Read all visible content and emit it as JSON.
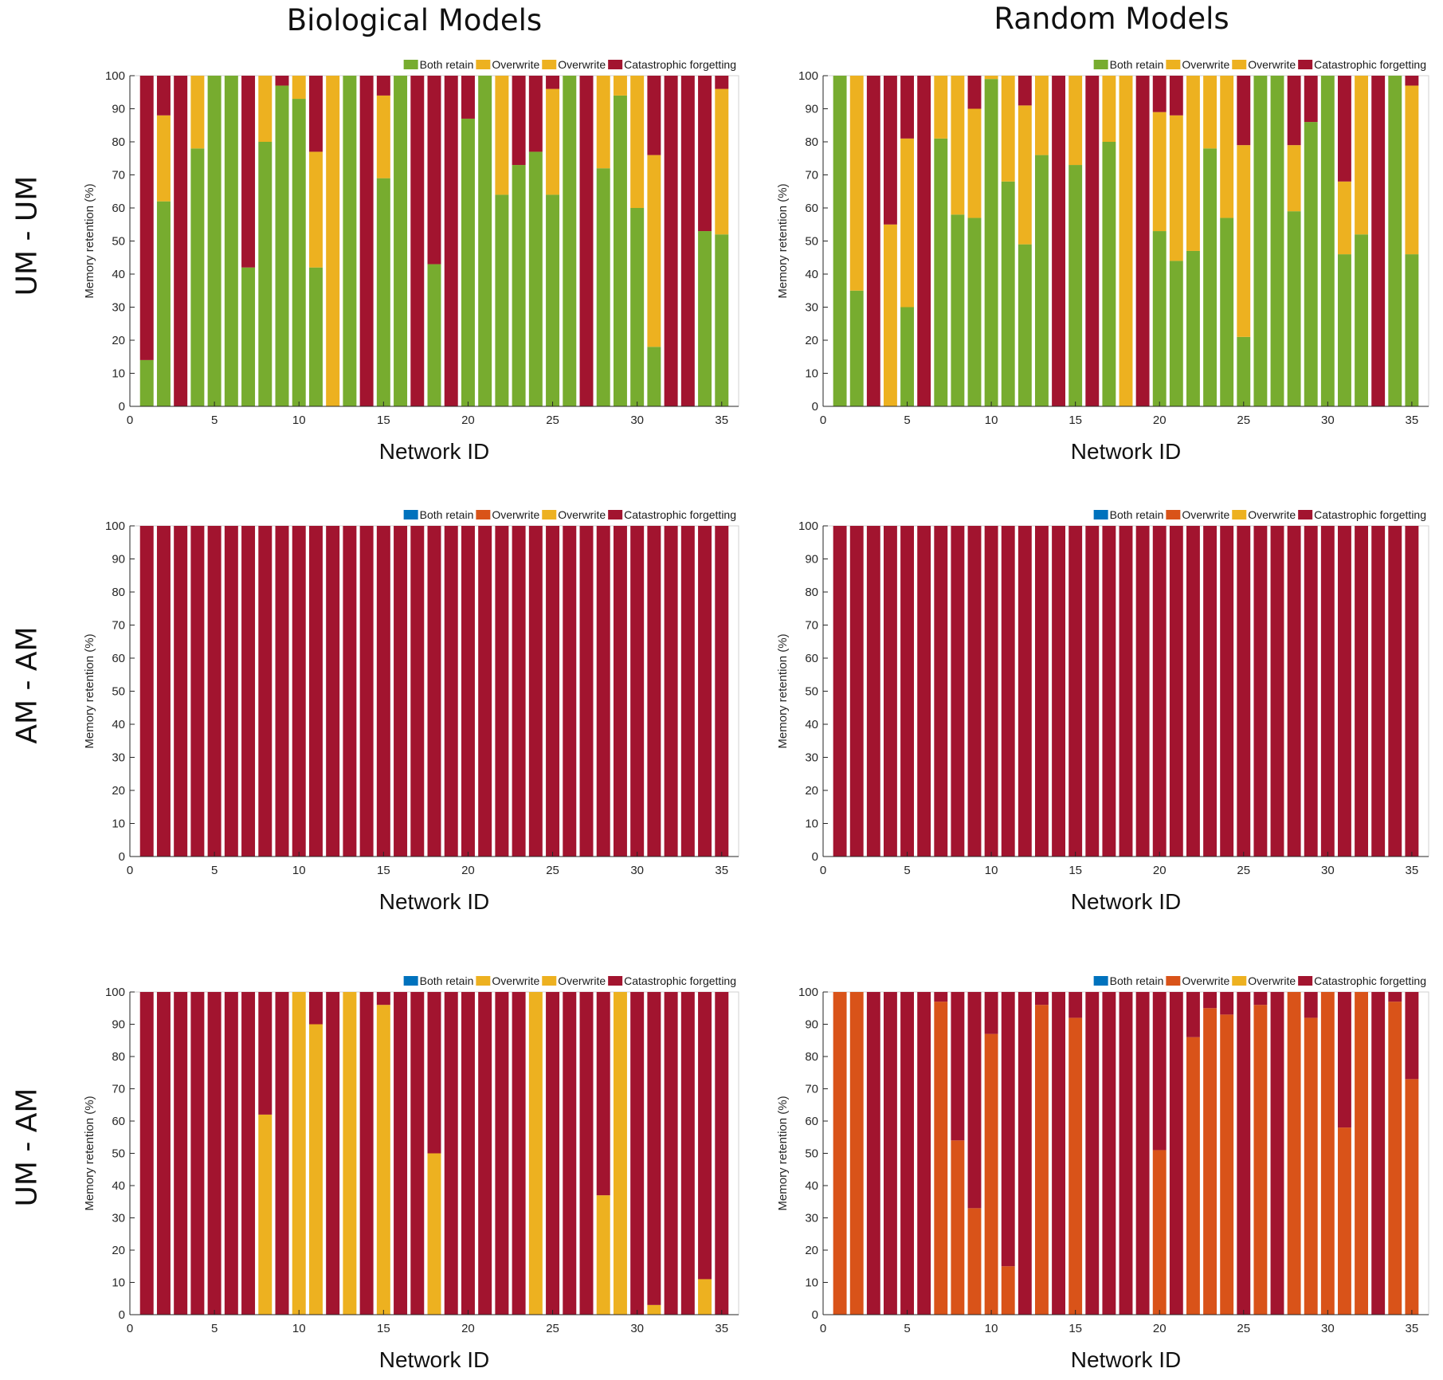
{
  "column_titles": [
    "Biological Models",
    "Random Models"
  ],
  "row_labels": [
    "UM - UM",
    "AM - AM",
    "UM - AM"
  ],
  "colors": {
    "both_retain_um": "#77ac2f",
    "overwrite_um": "#edb120",
    "both_retain_am": "#0072bd",
    "overwrite_am": "#d95319",
    "catastrophic": "#a2142f"
  },
  "chart_data": [
    {
      "type": "bar",
      "stacked": true,
      "panel": "biological-um-um",
      "xlabel": "Network ID",
      "ylabel": "Memory retention (%)",
      "xlim": [
        0,
        36
      ],
      "ylim": [
        0,
        100
      ],
      "xticks": [
        0,
        5,
        10,
        15,
        20,
        25,
        30,
        35
      ],
      "yticks": [
        0,
        10,
        20,
        30,
        40,
        50,
        60,
        70,
        80,
        90,
        100
      ],
      "legend": [
        "Both retain",
        "Overwrite",
        "Overwrite",
        "Catastrophic forgetting"
      ],
      "legend_colors": [
        "#77ac2f",
        "#edb120",
        "#edb120",
        "#a2142f"
      ],
      "legend_position": "top-right",
      "x": [
        1,
        2,
        3,
        4,
        5,
        6,
        7,
        8,
        9,
        10,
        11,
        12,
        13,
        14,
        15,
        16,
        17,
        18,
        19,
        20,
        21,
        22,
        23,
        24,
        25,
        26,
        27,
        28,
        29,
        30,
        31,
        32,
        33,
        34,
        35
      ],
      "series": [
        {
          "name": "Both retain",
          "color": "#77ac2f",
          "values": [
            14,
            62,
            0,
            78,
            100,
            100,
            42,
            80,
            97,
            93,
            42,
            0,
            100,
            0,
            69,
            100,
            0,
            43,
            0,
            87,
            100,
            64,
            73,
            77,
            64,
            100,
            0,
            72,
            94,
            60,
            18,
            0,
            0,
            53,
            52
          ]
        },
        {
          "name": "Overwrite",
          "color": "#edb120",
          "values": [
            0,
            26,
            0,
            22,
            0,
            0,
            0,
            20,
            0,
            7,
            35,
            100,
            0,
            0,
            25,
            0,
            0,
            0,
            0,
            0,
            0,
            36,
            0,
            0,
            32,
            0,
            0,
            28,
            6,
            40,
            58,
            0,
            0,
            0,
            44
          ]
        },
        {
          "name": "Catastrophic forgetting",
          "color": "#a2142f",
          "values": [
            86,
            12,
            100,
            0,
            0,
            0,
            58,
            0,
            3,
            0,
            23,
            0,
            0,
            100,
            6,
            0,
            100,
            57,
            100,
            13,
            0,
            0,
            27,
            23,
            4,
            0,
            100,
            0,
            0,
            0,
            24,
            100,
            100,
            47,
            4
          ]
        }
      ]
    },
    {
      "type": "bar",
      "stacked": true,
      "panel": "random-um-um",
      "xlabel": "Network ID",
      "ylabel": "Memory retention (%)",
      "xlim": [
        0,
        36
      ],
      "ylim": [
        0,
        100
      ],
      "xticks": [
        0,
        5,
        10,
        15,
        20,
        25,
        30,
        35
      ],
      "yticks": [
        0,
        10,
        20,
        30,
        40,
        50,
        60,
        70,
        80,
        90,
        100
      ],
      "legend": [
        "Both retain",
        "Overwrite",
        "Overwrite",
        "Catastrophic forgetting"
      ],
      "legend_colors": [
        "#77ac2f",
        "#edb120",
        "#edb120",
        "#a2142f"
      ],
      "legend_position": "top-right",
      "x": [
        1,
        2,
        3,
        4,
        5,
        6,
        7,
        8,
        9,
        10,
        11,
        12,
        13,
        14,
        15,
        16,
        17,
        18,
        19,
        20,
        21,
        22,
        23,
        24,
        25,
        26,
        27,
        28,
        29,
        30,
        31,
        32,
        33,
        34,
        35
      ],
      "series": [
        {
          "name": "Both retain",
          "color": "#77ac2f",
          "values": [
            100,
            35,
            0,
            0,
            30,
            0,
            81,
            58,
            57,
            99,
            68,
            49,
            76,
            0,
            73,
            0,
            80,
            0,
            0,
            53,
            44,
            47,
            78,
            57,
            21,
            100,
            100,
            59,
            86,
            100,
            46,
            52,
            0,
            100,
            46
          ]
        },
        {
          "name": "Overwrite",
          "color": "#edb120",
          "values": [
            0,
            65,
            0,
            55,
            51,
            0,
            19,
            42,
            33,
            1,
            32,
            42,
            24,
            0,
            27,
            0,
            20,
            100,
            0,
            36,
            44,
            53,
            22,
            43,
            58,
            0,
            0,
            20,
            0,
            0,
            22,
            48,
            0,
            0,
            51
          ]
        },
        {
          "name": "Catastrophic forgetting",
          "color": "#a2142f",
          "values": [
            0,
            0,
            100,
            45,
            19,
            100,
            0,
            0,
            10,
            0,
            0,
            9,
            0,
            100,
            0,
            100,
            0,
            0,
            100,
            11,
            12,
            0,
            0,
            0,
            21,
            0,
            0,
            21,
            14,
            0,
            32,
            0,
            100,
            0,
            3
          ]
        }
      ]
    },
    {
      "type": "bar",
      "stacked": true,
      "panel": "biological-am-am",
      "xlabel": "Network ID",
      "ylabel": "Memory retention (%)",
      "xlim": [
        0,
        36
      ],
      "ylim": [
        0,
        100
      ],
      "xticks": [
        0,
        5,
        10,
        15,
        20,
        25,
        30,
        35
      ],
      "yticks": [
        0,
        10,
        20,
        30,
        40,
        50,
        60,
        70,
        80,
        90,
        100
      ],
      "legend": [
        "Both retain",
        "Overwrite",
        "Overwrite",
        "Catastrophic forgetting"
      ],
      "legend_colors": [
        "#0072bd",
        "#d95319",
        "#edb120",
        "#a2142f"
      ],
      "legend_position": "top-right",
      "x": [
        1,
        2,
        3,
        4,
        5,
        6,
        7,
        8,
        9,
        10,
        11,
        12,
        13,
        14,
        15,
        16,
        17,
        18,
        19,
        20,
        21,
        22,
        23,
        24,
        25,
        26,
        27,
        28,
        29,
        30,
        31,
        32,
        33,
        34,
        35
      ],
      "series": [
        {
          "name": "Catastrophic forgetting",
          "color": "#a2142f",
          "values": [
            100,
            100,
            100,
            100,
            100,
            100,
            100,
            100,
            100,
            100,
            100,
            100,
            100,
            100,
            100,
            100,
            100,
            100,
            100,
            100,
            100,
            100,
            100,
            100,
            100,
            100,
            100,
            100,
            100,
            100,
            100,
            100,
            100,
            100,
            100
          ]
        }
      ]
    },
    {
      "type": "bar",
      "stacked": true,
      "panel": "random-am-am",
      "xlabel": "Network ID",
      "ylabel": "Memory retention (%)",
      "xlim": [
        0,
        36
      ],
      "ylim": [
        0,
        100
      ],
      "xticks": [
        0,
        5,
        10,
        15,
        20,
        25,
        30,
        35
      ],
      "yticks": [
        0,
        10,
        20,
        30,
        40,
        50,
        60,
        70,
        80,
        90,
        100
      ],
      "legend": [
        "Both retain",
        "Overwrite",
        "Overwrite",
        "Catastrophic forgetting"
      ],
      "legend_colors": [
        "#0072bd",
        "#d95319",
        "#edb120",
        "#a2142f"
      ],
      "legend_position": "top-right",
      "x": [
        1,
        2,
        3,
        4,
        5,
        6,
        7,
        8,
        9,
        10,
        11,
        12,
        13,
        14,
        15,
        16,
        17,
        18,
        19,
        20,
        21,
        22,
        23,
        24,
        25,
        26,
        27,
        28,
        29,
        30,
        31,
        32,
        33,
        34,
        35
      ],
      "series": [
        {
          "name": "Catastrophic forgetting",
          "color": "#a2142f",
          "values": [
            100,
            100,
            100,
            100,
            100,
            100,
            100,
            100,
            100,
            100,
            100,
            100,
            100,
            100,
            100,
            100,
            100,
            100,
            100,
            100,
            100,
            100,
            100,
            100,
            100,
            100,
            100,
            100,
            100,
            100,
            100,
            100,
            100,
            100,
            100
          ]
        }
      ]
    },
    {
      "type": "bar",
      "stacked": true,
      "panel": "biological-um-am",
      "xlabel": "Network ID",
      "ylabel": "Memory retention (%)",
      "xlim": [
        0,
        36
      ],
      "ylim": [
        0,
        100
      ],
      "xticks": [
        0,
        5,
        10,
        15,
        20,
        25,
        30,
        35
      ],
      "yticks": [
        0,
        10,
        20,
        30,
        40,
        50,
        60,
        70,
        80,
        90,
        100
      ],
      "legend": [
        "Both retain",
        "Overwrite",
        "Overwrite",
        "Catastrophic forgetting"
      ],
      "legend_colors": [
        "#0072bd",
        "#edb120",
        "#edb120",
        "#a2142f"
      ],
      "legend_position": "top-right",
      "x": [
        1,
        2,
        3,
        4,
        5,
        6,
        7,
        8,
        9,
        10,
        11,
        12,
        13,
        14,
        15,
        16,
        17,
        18,
        19,
        20,
        21,
        22,
        23,
        24,
        25,
        26,
        27,
        28,
        29,
        30,
        31,
        32,
        33,
        34,
        35
      ],
      "series": [
        {
          "name": "Overwrite",
          "color": "#edb120",
          "values": [
            0,
            0,
            0,
            0,
            0,
            0,
            0,
            62,
            0,
            100,
            90,
            0,
            100,
            0,
            96,
            0,
            0,
            50,
            0,
            0,
            0,
            0,
            0,
            100,
            0,
            0,
            0,
            37,
            100,
            0,
            3,
            0,
            0,
            11,
            0
          ]
        },
        {
          "name": "Catastrophic forgetting",
          "color": "#a2142f",
          "values": [
            100,
            100,
            100,
            100,
            100,
            100,
            100,
            38,
            100,
            0,
            10,
            100,
            0,
            100,
            4,
            100,
            100,
            50,
            100,
            100,
            100,
            100,
            100,
            0,
            100,
            100,
            100,
            63,
            0,
            100,
            97,
            100,
            100,
            89,
            100
          ]
        }
      ]
    },
    {
      "type": "bar",
      "stacked": true,
      "panel": "random-um-am",
      "xlabel": "Network ID",
      "ylabel": "Memory retention (%)",
      "xlim": [
        0,
        36
      ],
      "ylim": [
        0,
        100
      ],
      "xticks": [
        0,
        5,
        10,
        15,
        20,
        25,
        30,
        35
      ],
      "yticks": [
        0,
        10,
        20,
        30,
        40,
        50,
        60,
        70,
        80,
        90,
        100
      ],
      "legend": [
        "Both retain",
        "Overwrite",
        "Overwrite",
        "Catastrophic forgetting"
      ],
      "legend_colors": [
        "#0072bd",
        "#d95319",
        "#edb120",
        "#a2142f"
      ],
      "legend_position": "top-right",
      "x": [
        1,
        2,
        3,
        4,
        5,
        6,
        7,
        8,
        9,
        10,
        11,
        12,
        13,
        14,
        15,
        16,
        17,
        18,
        19,
        20,
        21,
        22,
        23,
        24,
        25,
        26,
        27,
        28,
        29,
        30,
        31,
        32,
        33,
        34,
        35
      ],
      "series": [
        {
          "name": "Overwrite",
          "color": "#d95319",
          "values": [
            100,
            100,
            0,
            0,
            0,
            0,
            97,
            54,
            33,
            87,
            15,
            0,
            96,
            0,
            92,
            0,
            0,
            0,
            0,
            51,
            0,
            86,
            95,
            93,
            0,
            96,
            0,
            100,
            92,
            100,
            58,
            100,
            0,
            97,
            73
          ]
        },
        {
          "name": "Catastrophic forgetting",
          "color": "#a2142f",
          "values": [
            0,
            0,
            100,
            100,
            100,
            100,
            3,
            46,
            67,
            13,
            85,
            100,
            4,
            100,
            8,
            100,
            100,
            100,
            100,
            49,
            100,
            14,
            5,
            7,
            100,
            4,
            100,
            0,
            8,
            0,
            42,
            0,
            100,
            3,
            27
          ]
        }
      ]
    }
  ]
}
